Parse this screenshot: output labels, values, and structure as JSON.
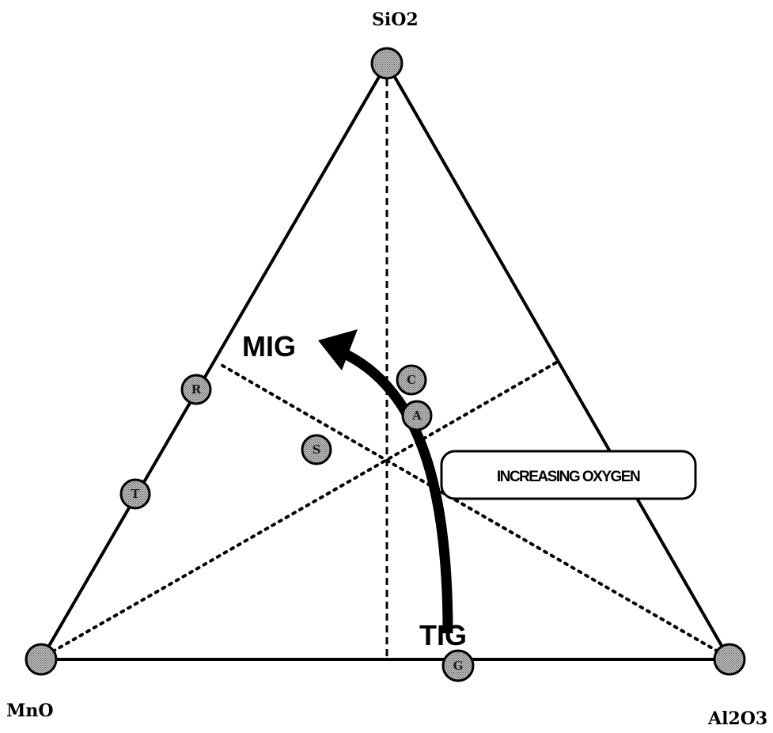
{
  "vertices": {
    "top": "SiO2",
    "bottom_left": "MnO",
    "bottom_right": "Al2O3"
  },
  "process_labels": {
    "mig": "MIG",
    "tig": "TIG"
  },
  "trend_box": {
    "label": "INCREASING OXYGEN"
  },
  "markers": [
    {
      "letter": "R"
    },
    {
      "letter": "T"
    },
    {
      "letter": "S"
    },
    {
      "letter": "C"
    },
    {
      "letter": "A"
    },
    {
      "letter": "G"
    }
  ],
  "colors": {
    "line": "#000000",
    "marker_fill": "#9a9a9a",
    "background": "#ffffff"
  }
}
